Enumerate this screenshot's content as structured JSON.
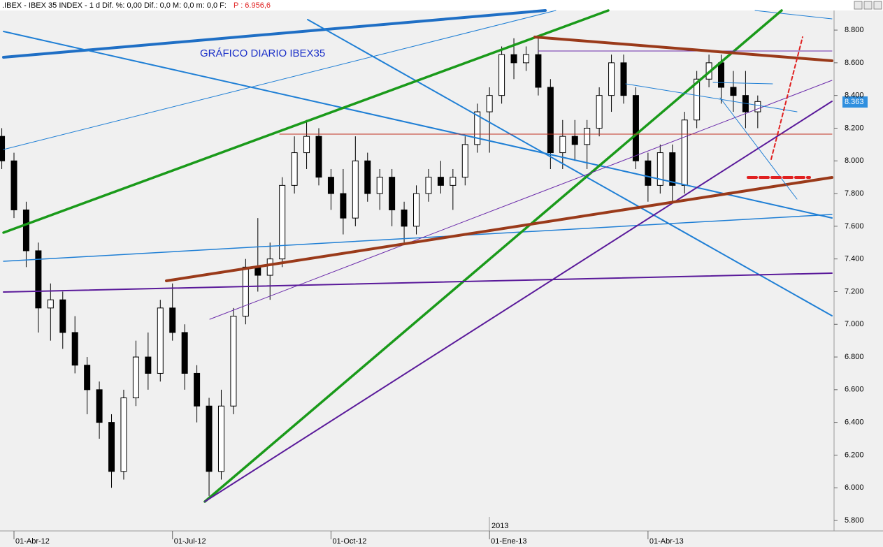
{
  "chart_data": {
    "type": "candlestick",
    "header": ".IBEX - IBEX 35 INDEX - 1 d Dif. %: 0,00 Dif.: 0,0 M: 0,0 m: 0,0 F:",
    "header_price": "P : 6.956,6",
    "title": "GRÁFICO DIARIO IBEX35",
    "year_label": "2013",
    "last_price_label": "8.363",
    "categories": [
      null,
      "01-Abr-12",
      null,
      null,
      null,
      null,
      null,
      null,
      null,
      null,
      null,
      null,
      null,
      null,
      "01-Jul-12",
      null,
      null,
      null,
      null,
      null,
      null,
      null,
      null,
      null,
      null,
      null,
      null,
      "01-Oct-12",
      null,
      null,
      null,
      null,
      null,
      null,
      null,
      null,
      null,
      null,
      null,
      null,
      "01-Ene-13",
      null,
      null,
      null,
      null,
      null,
      null,
      null,
      null,
      null,
      null,
      null,
      null,
      "01-Abr-13",
      null,
      null,
      null,
      null,
      null,
      null,
      null,
      null,
      null
    ],
    "open": [
      8150,
      8000,
      7700,
      7450,
      7100,
      7150,
      6950,
      6750,
      6600,
      6400,
      6100,
      6550,
      6800,
      6700,
      7100,
      6950,
      6700,
      6500,
      6100,
      6500,
      7050,
      7350,
      7300,
      7400,
      7850,
      8050,
      8150,
      7900,
      7800,
      7650,
      8000,
      7800,
      7900,
      7700,
      7600,
      7800,
      7900,
      7850,
      7900,
      8100,
      8300,
      8400,
      8650,
      8600,
      8650,
      8450,
      8050,
      8150,
      8100,
      8200,
      8400,
      8600,
      8400,
      8000,
      7850,
      8050,
      7850,
      8250,
      8500,
      8600,
      8450,
      8400,
      8300
    ],
    "high": [
      8200,
      8050,
      7750,
      7500,
      7250,
      7200,
      7050,
      6800,
      6650,
      6450,
      6600,
      6900,
      6950,
      7150,
      7250,
      7000,
      6750,
      6550,
      6600,
      7100,
      7400,
      7650,
      7500,
      7900,
      8150,
      8250,
      8200,
      7950,
      7950,
      8150,
      8050,
      7950,
      7950,
      7750,
      7850,
      7950,
      8000,
      7950,
      8150,
      8350,
      8450,
      8700,
      8750,
      8700,
      8750,
      8500,
      8250,
      8250,
      8250,
      8450,
      8650,
      8650,
      8450,
      8050,
      8100,
      8100,
      8300,
      8550,
      8650,
      8650,
      8550,
      8550,
      8400
    ],
    "low": [
      7950,
      7650,
      7350,
      6950,
      6900,
      6850,
      6700,
      6450,
      6300,
      6000,
      6050,
      6500,
      6600,
      6650,
      6900,
      6600,
      6400,
      5950,
      6050,
      6450,
      7000,
      7200,
      7150,
      7350,
      7800,
      7950,
      7850,
      7700,
      7550,
      7600,
      7750,
      7700,
      7600,
      7500,
      7550,
      7750,
      7800,
      7700,
      7850,
      8050,
      8050,
      8350,
      8500,
      8550,
      8400,
      7950,
      7950,
      8000,
      7950,
      8150,
      8300,
      8350,
      7950,
      7750,
      7800,
      7750,
      7800,
      8200,
      8450,
      8350,
      8300,
      8200,
      8200
    ],
    "close": [
      8000,
      7700,
      7450,
      7100,
      7150,
      6950,
      6750,
      6600,
      6400,
      6100,
      6550,
      6800,
      6700,
      7100,
      6950,
      6700,
      6500,
      6100,
      6500,
      7050,
      7350,
      7300,
      7400,
      7850,
      8050,
      8150,
      7900,
      7800,
      7650,
      8000,
      7800,
      7900,
      7700,
      7600,
      7800,
      7900,
      7850,
      7900,
      8100,
      8300,
      8400,
      8650,
      8600,
      8650,
      8450,
      8050,
      8150,
      8100,
      8200,
      8400,
      8600,
      8400,
      8000,
      7850,
      8050,
      7850,
      8250,
      8500,
      8600,
      8450,
      8400,
      8300,
      8363
    ],
    "ylim": [
      5736,
      8920
    ],
    "yticks": [
      {
        "value": 5800,
        "label": "5.800"
      },
      {
        "value": 6000,
        "label": "6.000"
      },
      {
        "value": 6200,
        "label": "6.200"
      },
      {
        "value": 6400,
        "label": "6.400"
      },
      {
        "value": 6600,
        "label": "6.600"
      },
      {
        "value": 6800,
        "label": "6.800"
      },
      {
        "value": 7000,
        "label": "7.000"
      },
      {
        "value": 7200,
        "label": "7.200"
      },
      {
        "value": 7400,
        "label": "7.400"
      },
      {
        "value": 7600,
        "label": "7.600"
      },
      {
        "value": 7800,
        "label": "7.800"
      },
      {
        "value": 8000,
        "label": "8.000"
      },
      {
        "value": 8200,
        "label": "8.200"
      },
      {
        "value": 8400,
        "label": "8.400"
      },
      {
        "value": 8600,
        "label": "8.600"
      },
      {
        "value": 8800,
        "label": "8.800"
      }
    ],
    "up_color": "#ffffff",
    "down_color": "#000000"
  }
}
